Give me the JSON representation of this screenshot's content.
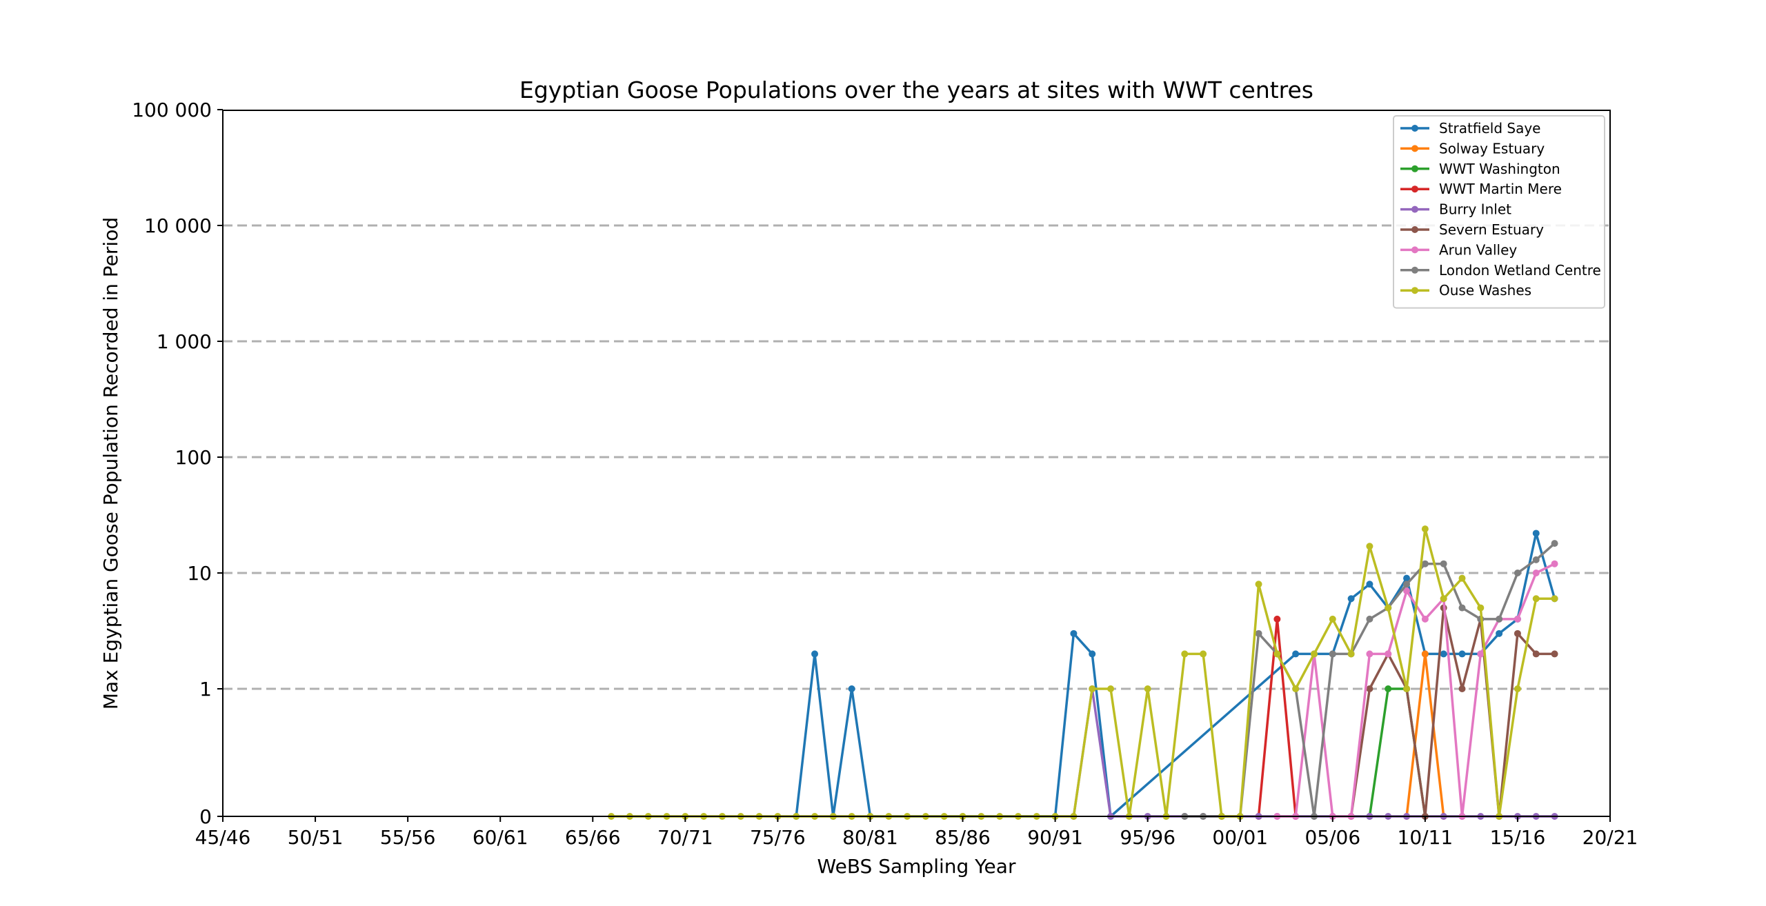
{
  "chart_data": {
    "type": "line",
    "title": "Egyptian Goose Populations over the years at sites with WWT centres",
    "xlabel": "WeBS Sampling Year",
    "ylabel": "Max Egyptian Goose Population Recorded in Period",
    "x_ticks": [
      "45/46",
      "50/51",
      "55/56",
      "60/61",
      "65/66",
      "70/71",
      "75/76",
      "80/81",
      "85/86",
      "90/91",
      "95/96",
      "00/01",
      "05/06",
      "10/11",
      "15/16",
      "20/21"
    ],
    "y_ticks": [
      "0",
      "1",
      "10",
      "100",
      "1 000",
      "10 000",
      "100 000"
    ],
    "y_scale": "symlog",
    "ylim": [
      0,
      100000
    ],
    "grid": "horizontal dashed",
    "legend_position": "top-right",
    "x_start_year": 1945,
    "x_end_year": 2020,
    "series": [
      {
        "name": "Stratfield Saye",
        "color": "#1f77b4",
        "points": [
          [
            1976,
            0
          ],
          [
            1977,
            2
          ],
          [
            1978,
            0
          ],
          [
            1979,
            1
          ],
          [
            1980,
            0
          ],
          [
            1990,
            0
          ],
          [
            1991,
            3
          ],
          [
            1992,
            2
          ],
          [
            1993,
            0
          ],
          [
            2003,
            2
          ],
          [
            2004,
            2
          ],
          [
            2005,
            2
          ],
          [
            2006,
            6
          ],
          [
            2007,
            8
          ],
          [
            2008,
            5
          ],
          [
            2009,
            9
          ],
          [
            2010,
            2
          ],
          [
            2011,
            2
          ],
          [
            2012,
            2
          ],
          [
            2013,
            2
          ],
          [
            2014,
            3
          ],
          [
            2015,
            4
          ],
          [
            2016,
            22
          ],
          [
            2017,
            6
          ]
        ]
      },
      {
        "name": "Solway Estuary",
        "color": "#ff7f0e",
        "points": [
          [
            2009,
            0
          ],
          [
            2010,
            2
          ],
          [
            2011,
            0
          ]
        ]
      },
      {
        "name": "WWT Washington",
        "color": "#2ca02c",
        "points": [
          [
            2007,
            0
          ],
          [
            2008,
            1
          ],
          [
            2009,
            1
          ],
          [
            2010,
            0
          ]
        ]
      },
      {
        "name": "WWT Martin Mere",
        "color": "#d62728",
        "points": [
          [
            2001,
            0
          ],
          [
            2002,
            4
          ],
          [
            2003,
            0
          ]
        ]
      },
      {
        "name": "Burry Inlet",
        "color": "#9467bd",
        "points": [
          [
            1991,
            0
          ],
          [
            1992,
            1
          ],
          [
            1993,
            0
          ],
          [
            1994,
            0
          ],
          [
            1995,
            0
          ],
          [
            1996,
            0
          ],
          [
            1997,
            0
          ],
          [
            1998,
            0
          ],
          [
            1999,
            0
          ],
          [
            2000,
            0
          ],
          [
            2001,
            0
          ],
          [
            2002,
            0
          ],
          [
            2003,
            0
          ],
          [
            2004,
            0
          ],
          [
            2005,
            0
          ],
          [
            2006,
            0
          ],
          [
            2007,
            0
          ],
          [
            2008,
            0
          ],
          [
            2009,
            0
          ],
          [
            2010,
            0
          ],
          [
            2011,
            0
          ],
          [
            2012,
            0
          ],
          [
            2013,
            0
          ],
          [
            2014,
            0
          ],
          [
            2015,
            0
          ],
          [
            2016,
            0
          ],
          [
            2017,
            0
          ]
        ]
      },
      {
        "name": "Severn Estuary",
        "color": "#8c564b",
        "points": [
          [
            2006,
            0
          ],
          [
            2007,
            1
          ],
          [
            2008,
            2
          ],
          [
            2009,
            1
          ],
          [
            2010,
            0
          ],
          [
            2011,
            5
          ],
          [
            2012,
            1
          ],
          [
            2013,
            4
          ],
          [
            2014,
            0
          ],
          [
            2015,
            3
          ],
          [
            2016,
            2
          ],
          [
            2017,
            2
          ]
        ]
      },
      {
        "name": "Arun Valley",
        "color": "#e377c2",
        "points": [
          [
            2002,
            0
          ],
          [
            2003,
            0
          ],
          [
            2004,
            2
          ],
          [
            2005,
            0
          ],
          [
            2006,
            0
          ],
          [
            2007,
            2
          ],
          [
            2008,
            2
          ],
          [
            2009,
            7
          ],
          [
            2010,
            4
          ],
          [
            2011,
            6
          ],
          [
            2012,
            0
          ],
          [
            2013,
            2
          ],
          [
            2014,
            4
          ],
          [
            2015,
            4
          ],
          [
            2016,
            10
          ],
          [
            2017,
            12
          ]
        ]
      },
      {
        "name": "London Wetland Centre",
        "color": "#7f7f7f",
        "points": [
          [
            1997,
            0
          ],
          [
            1998,
            0
          ],
          [
            1999,
            0
          ],
          [
            2000,
            0
          ],
          [
            2001,
            3
          ],
          [
            2002,
            2
          ],
          [
            2003,
            1
          ],
          [
            2004,
            0
          ],
          [
            2005,
            2
          ],
          [
            2006,
            2
          ],
          [
            2007,
            4
          ],
          [
            2008,
            5
          ],
          [
            2009,
            8
          ],
          [
            2010,
            12
          ],
          [
            2011,
            12
          ],
          [
            2012,
            5
          ],
          [
            2013,
            4
          ],
          [
            2014,
            4
          ],
          [
            2015,
            10
          ],
          [
            2016,
            13
          ],
          [
            2017,
            18
          ]
        ]
      },
      {
        "name": "Ouse Washes",
        "color": "#bcbd22",
        "points": [
          [
            1966,
            0
          ],
          [
            1967,
            0
          ],
          [
            1968,
            0
          ],
          [
            1969,
            0
          ],
          [
            1970,
            0
          ],
          [
            1971,
            0
          ],
          [
            1972,
            0
          ],
          [
            1973,
            0
          ],
          [
            1974,
            0
          ],
          [
            1975,
            0
          ],
          [
            1976,
            0
          ],
          [
            1977,
            0
          ],
          [
            1978,
            0
          ],
          [
            1979,
            0
          ],
          [
            1980,
            0
          ],
          [
            1981,
            0
          ],
          [
            1982,
            0
          ],
          [
            1983,
            0
          ],
          [
            1984,
            0
          ],
          [
            1985,
            0
          ],
          [
            1986,
            0
          ],
          [
            1987,
            0
          ],
          [
            1988,
            0
          ],
          [
            1989,
            0
          ],
          [
            1990,
            0
          ],
          [
            1991,
            0
          ],
          [
            1992,
            1
          ],
          [
            1993,
            1
          ],
          [
            1994,
            0
          ],
          [
            1995,
            1
          ],
          [
            1996,
            0
          ],
          [
            1997,
            2
          ],
          [
            1998,
            2
          ],
          [
            1999,
            0
          ],
          [
            2000,
            0
          ],
          [
            2001,
            8
          ],
          [
            2002,
            2
          ],
          [
            2003,
            1
          ],
          [
            2004,
            2
          ],
          [
            2005,
            4
          ],
          [
            2006,
            2
          ],
          [
            2007,
            17
          ],
          [
            2008,
            5
          ],
          [
            2009,
            1
          ],
          [
            2010,
            24
          ],
          [
            2011,
            6
          ],
          [
            2012,
            9
          ],
          [
            2013,
            5
          ],
          [
            2014,
            0
          ],
          [
            2015,
            1
          ],
          [
            2016,
            6
          ],
          [
            2017,
            6
          ]
        ]
      }
    ]
  }
}
